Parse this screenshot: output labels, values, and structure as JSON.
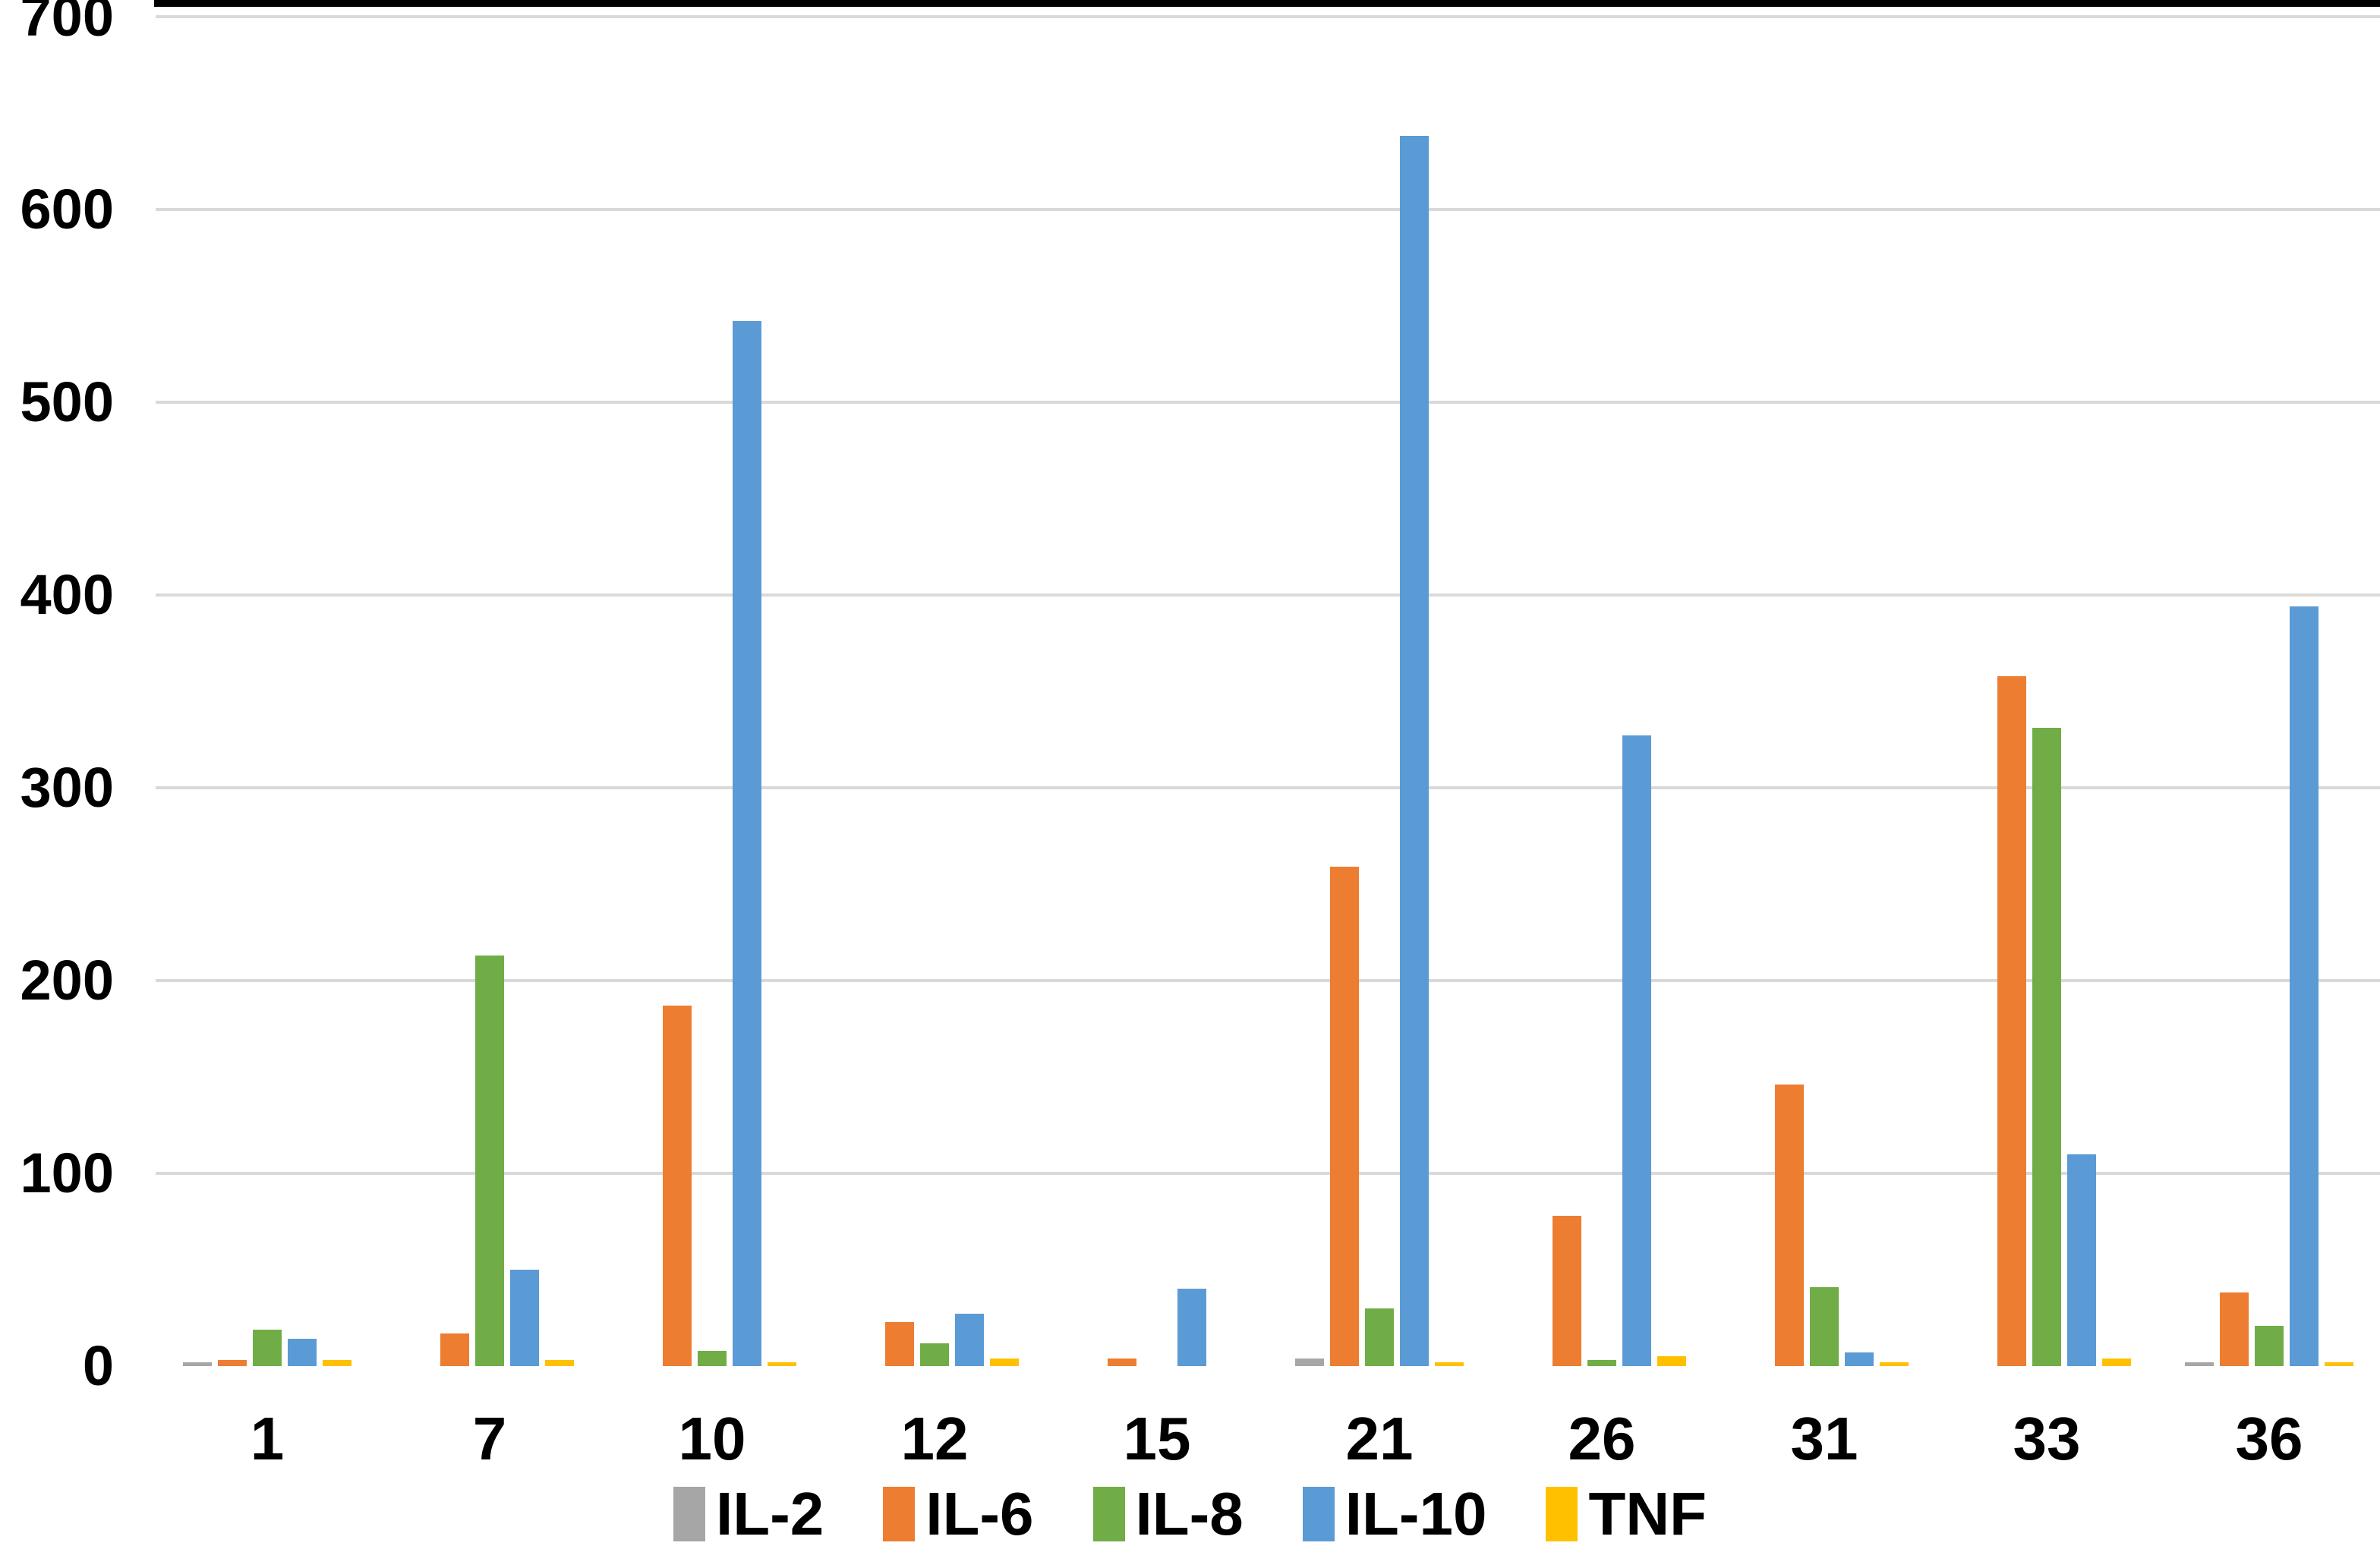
{
  "figure": {
    "background_color": "#ffffff",
    "gridline_color": "#d9d9d9",
    "axis_line_color": "#000000",
    "label_color": "#000000"
  },
  "chart_data": {
    "type": "bar",
    "title": "",
    "xlabel": "",
    "ylabel": "",
    "categories": [
      "1",
      "7",
      "10",
      "12",
      "15",
      "21",
      "26",
      "31",
      "33",
      "36"
    ],
    "series": [
      {
        "name": "IL-2",
        "color": "#a6a6a6",
        "values": [
          2,
          0,
          0,
          0,
          0,
          4,
          0,
          0,
          0,
          2
        ]
      },
      {
        "name": "IL-6",
        "color": "#ed7d31",
        "values": [
          3,
          17,
          187,
          23,
          4,
          259,
          78,
          146,
          358,
          38
        ]
      },
      {
        "name": "IL-8",
        "color": "#70ad47",
        "values": [
          19,
          213,
          8,
          12,
          0,
          30,
          3,
          41,
          331,
          21
        ]
      },
      {
        "name": "IL-10",
        "color": "#5b9bd5",
        "values": [
          14,
          50,
          542,
          27,
          40,
          638,
          327,
          7,
          110,
          394
        ]
      },
      {
        "name": "TNF",
        "color": "#ffc000",
        "values": [
          3,
          3,
          2,
          4,
          0,
          2,
          5,
          2,
          4,
          2
        ]
      }
    ],
    "ylim": [
      0,
      700
    ],
    "ytick_step": 100,
    "ytick_labels": [
      "0",
      "100",
      "200",
      "300",
      "400",
      "500",
      "600",
      "700"
    ],
    "grid": true,
    "legend_position": "bottom",
    "legend_labels": [
      "IL-2",
      "IL-6",
      "IL-8",
      "IL-10",
      "TNF"
    ]
  }
}
